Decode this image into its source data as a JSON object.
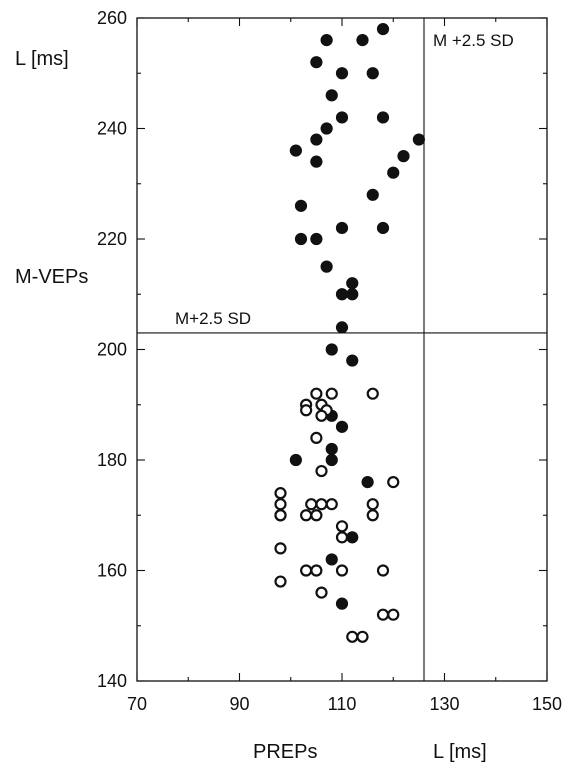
{
  "chart_data": {
    "type": "scatter",
    "title": "",
    "xlabel": "PREPs",
    "x_unit_label": "L [ms]",
    "ylabel": "M-VEPs",
    "y_unit_label": "L [ms]",
    "xlim": [
      70,
      150
    ],
    "ylim": [
      140,
      260
    ],
    "x_ticks": [
      70,
      90,
      110,
      130,
      150
    ],
    "y_ticks": [
      140,
      160,
      180,
      200,
      220,
      240,
      260
    ],
    "grid": false,
    "legend": "none",
    "reference_lines": [
      {
        "orientation": "vertical",
        "value": 126,
        "label": "M +2.5 SD"
      },
      {
        "orientation": "horizontal",
        "value": 203,
        "label": "M+2.5 SD"
      }
    ],
    "series": [
      {
        "marker": "filled-circle",
        "color": "#111111",
        "points": [
          [
            118,
            258
          ],
          [
            107,
            256
          ],
          [
            114,
            256
          ],
          [
            105,
            252
          ],
          [
            110,
            250
          ],
          [
            116,
            250
          ],
          [
            108,
            246
          ],
          [
            110,
            242
          ],
          [
            118,
            242
          ],
          [
            107,
            240
          ],
          [
            105,
            238
          ],
          [
            125,
            238
          ],
          [
            101,
            236
          ],
          [
            122,
            235
          ],
          [
            105,
            234
          ],
          [
            120,
            232
          ],
          [
            116,
            228
          ],
          [
            102,
            226
          ],
          [
            110,
            222
          ],
          [
            118,
            222
          ],
          [
            102,
            220
          ],
          [
            105,
            220
          ],
          [
            107,
            215
          ],
          [
            112,
            212
          ],
          [
            110,
            210
          ],
          [
            112,
            210
          ],
          [
            110,
            204
          ],
          [
            108,
            200
          ],
          [
            112,
            198
          ],
          [
            108,
            188
          ],
          [
            110,
            186
          ],
          [
            108,
            182
          ],
          [
            101,
            180
          ],
          [
            108,
            180
          ],
          [
            115,
            176
          ],
          [
            98,
            170
          ],
          [
            112,
            166
          ],
          [
            108,
            162
          ],
          [
            110,
            154
          ]
        ]
      },
      {
        "marker": "open-circle",
        "color": "#111111",
        "points": [
          [
            105,
            192
          ],
          [
            108,
            192
          ],
          [
            116,
            192
          ],
          [
            103,
            190
          ],
          [
            106,
            190
          ],
          [
            103,
            189
          ],
          [
            107,
            189
          ],
          [
            106,
            188
          ],
          [
            105,
            184
          ],
          [
            106,
            178
          ],
          [
            120,
            176
          ],
          [
            98,
            174
          ],
          [
            98,
            172
          ],
          [
            104,
            172
          ],
          [
            106,
            172
          ],
          [
            108,
            172
          ],
          [
            116,
            172
          ],
          [
            98,
            170
          ],
          [
            103,
            170
          ],
          [
            105,
            170
          ],
          [
            116,
            170
          ],
          [
            110,
            168
          ],
          [
            110,
            166
          ],
          [
            98,
            164
          ],
          [
            103,
            160
          ],
          [
            105,
            160
          ],
          [
            110,
            160
          ],
          [
            118,
            160
          ],
          [
            98,
            158
          ],
          [
            106,
            156
          ],
          [
            118,
            152
          ],
          [
            120,
            152
          ],
          [
            112,
            148
          ],
          [
            114,
            148
          ]
        ]
      }
    ]
  }
}
